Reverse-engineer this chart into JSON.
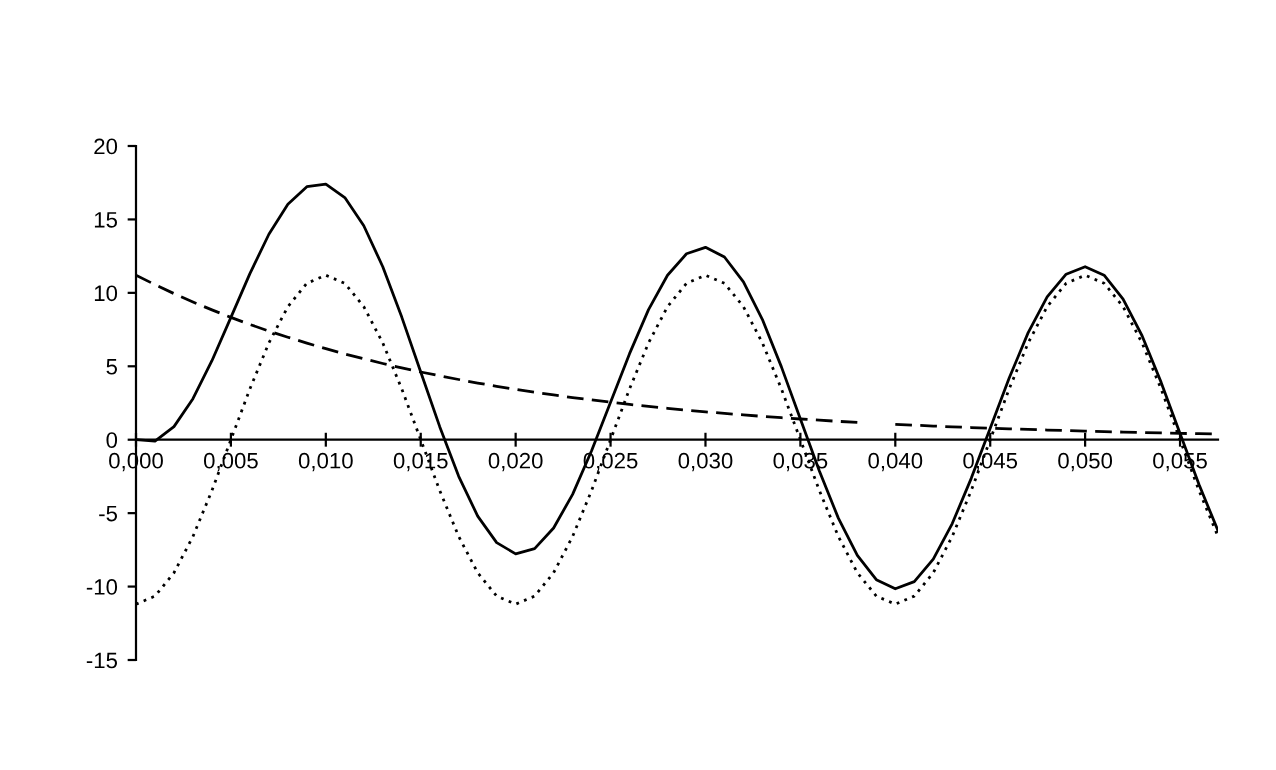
{
  "chart_data": {
    "type": "line",
    "x": [
      0,
      0.001,
      0.002,
      0.003,
      0.004,
      0.005,
      0.006,
      0.007,
      0.008,
      0.009,
      0.01,
      0.011,
      0.012,
      0.013,
      0.014,
      0.015,
      0.016,
      0.017,
      0.018,
      0.019,
      0.02,
      0.021,
      0.022,
      0.023,
      0.024,
      0.025,
      0.026,
      0.027,
      0.028,
      0.029,
      0.03,
      0.031,
      0.032,
      0.033,
      0.034,
      0.035,
      0.036,
      0.037,
      0.038,
      0.039,
      0.04,
      0.041,
      0.042,
      0.043,
      0.044,
      0.045,
      0.046,
      0.047,
      0.048,
      0.049,
      0.05,
      0.051,
      0.052,
      0.053,
      0.054,
      0.055,
      0.056,
      0.057
    ],
    "series": [
      {
        "color": "#000000",
        "line_style": "solid",
        "values": [
          0.0,
          -0.09,
          0.89,
          2.79,
          5.38,
          8.33,
          11.31,
          13.99,
          16.04,
          17.23,
          17.4,
          16.49,
          14.57,
          11.78,
          8.35,
          4.61,
          0.89,
          -2.49,
          -5.2,
          -7.01,
          -7.77,
          -7.42,
          -6.01,
          -3.72,
          -0.75,
          2.55,
          5.86,
          8.86,
          11.2,
          12.66,
          13.1,
          12.44,
          10.75,
          8.18,
          4.96,
          1.41,
          -2.13,
          -5.34,
          -7.88,
          -9.53,
          -10.15,
          -9.66,
          -8.13,
          -5.71,
          -2.63,
          0.78,
          4.2,
          7.29,
          9.72,
          11.27,
          11.78,
          11.2,
          9.58,
          7.08,
          3.92,
          0.43,
          -3.05,
          -6.2
        ]
      },
      {
        "color": "#000000",
        "line_style": "dotted",
        "values": [
          -11.2,
          -10.65,
          -9.06,
          -6.59,
          -3.46,
          0,
          3.46,
          6.59,
          9.06,
          10.65,
          11.2,
          10.65,
          9.06,
          6.59,
          3.46,
          0,
          -3.46,
          -6.59,
          -9.06,
          -10.65,
          -11.2,
          -10.65,
          -9.06,
          -6.59,
          -3.46,
          0,
          3.46,
          6.59,
          9.06,
          10.65,
          11.2,
          10.65,
          9.06,
          6.59,
          3.46,
          0,
          -3.46,
          -6.59,
          -9.06,
          -10.65,
          -11.2,
          -10.65,
          -9.06,
          -6.59,
          -3.46,
          0,
          3.46,
          6.59,
          9.06,
          10.65,
          11.2,
          10.65,
          9.06,
          6.59,
          3.46,
          0,
          -3.46,
          -6.59
        ]
      },
      {
        "color": "#000000",
        "line_style": "dashed",
        "values": [
          11.2,
          10.56,
          9.95,
          9.38,
          8.84,
          8.33,
          7.85,
          7.4,
          6.98,
          6.58,
          6.2,
          5.84,
          5.51,
          5.19,
          4.89,
          4.61,
          4.35,
          4.1,
          3.86,
          3.64,
          3.43,
          3.23,
          3.05,
          2.87,
          2.71,
          2.55,
          2.4,
          2.27,
          2.14,
          2.01,
          1.9,
          1.79,
          1.69,
          1.59,
          1.5,
          1.41,
          1.33,
          1.25,
          1.18,
          null,
          1.05,
          0.99,
          0.93,
          0.88,
          0.83,
          0.78,
          0.74,
          0.7,
          0.66,
          0.62,
          0.58,
          0.55,
          0.52,
          0.49,
          0.46,
          0.43,
          0.41,
          0.39
        ]
      }
    ],
    "xlim": [
      0,
      0.057
    ],
    "xticks": [
      {
        "value": 0,
        "label": "0,000"
      },
      {
        "value": 0.005,
        "label": "0,005"
      },
      {
        "value": 0.01,
        "label": "0,010"
      },
      {
        "value": 0.015,
        "label": "0,015"
      },
      {
        "value": 0.02,
        "label": "0,020"
      },
      {
        "value": 0.025,
        "label": "0,025"
      },
      {
        "value": 0.03,
        "label": "0,030"
      },
      {
        "value": 0.035,
        "label": "0,035"
      },
      {
        "value": 0.04,
        "label": "0,040"
      },
      {
        "value": 0.045,
        "label": "0,045"
      },
      {
        "value": 0.05,
        "label": "0,050"
      },
      {
        "value": 0.055,
        "label": "0,055"
      }
    ],
    "ylim": [
      -15,
      20
    ],
    "yticks": [
      -15,
      -10,
      -5,
      0,
      5,
      10,
      15,
      20
    ],
    "grid": false,
    "legend": false
  }
}
